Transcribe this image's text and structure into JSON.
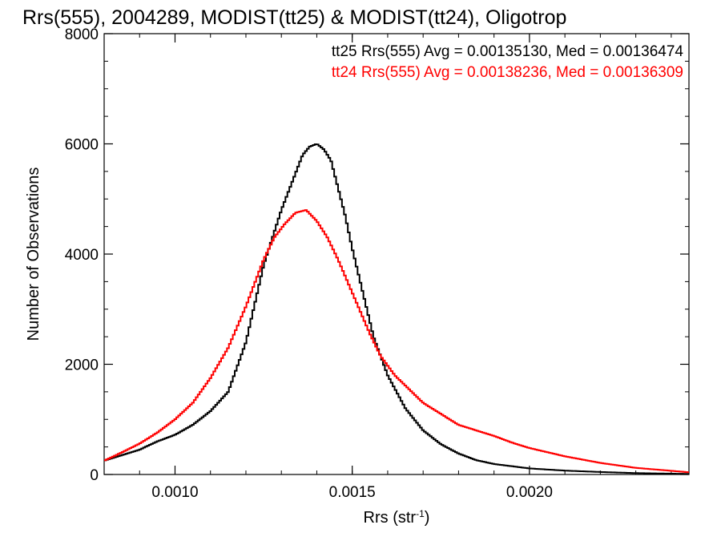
{
  "chart_data": {
    "type": "line",
    "title": "Rrs(555), 2004289, MODIST(tt25) & MODIST(tt24), Oligotrop",
    "xlabel": "Rrs (str",
    "xlabel_sup": "-1",
    "xlabel_close": ")",
    "ylabel": "Number of Observations",
    "xlim": [
      0.0008,
      0.00245
    ],
    "ylim": [
      0,
      8000
    ],
    "x_ticks": [
      0.001,
      0.0015,
      0.002
    ],
    "x_tick_labels": [
      "0.0010",
      "0.0015",
      "0.0020"
    ],
    "y_ticks": [
      0,
      2000,
      4000,
      6000,
      8000
    ],
    "y_tick_labels": [
      "0",
      "2000",
      "4000",
      "6000",
      "8000"
    ],
    "grid": false,
    "legend_position": "top-right",
    "series": [
      {
        "name": "tt25",
        "color": "#000000",
        "legend": "tt25 Rrs(555) Avg = 0.00135130, Med = 0.00136474",
        "x": [
          0.0008,
          0.00085,
          0.0009,
          0.00095,
          0.001,
          0.00105,
          0.0011,
          0.00115,
          0.0012,
          0.00125,
          0.0013,
          0.00133,
          0.00136,
          0.00138,
          0.0014,
          0.00142,
          0.00144,
          0.00146,
          0.00148,
          0.0015,
          0.00153,
          0.00156,
          0.0016,
          0.00165,
          0.0017,
          0.00175,
          0.0018,
          0.00185,
          0.0019,
          0.002,
          0.0021,
          0.0022,
          0.0023,
          0.00245
        ],
        "y": [
          250,
          350,
          450,
          600,
          720,
          900,
          1150,
          1500,
          2400,
          3800,
          4800,
          5300,
          5800,
          5950,
          6000,
          5900,
          5700,
          5200,
          4700,
          4100,
          3300,
          2500,
          1800,
          1200,
          800,
          550,
          380,
          260,
          190,
          110,
          70,
          45,
          25,
          10
        ]
      },
      {
        "name": "tt24",
        "color": "#ff0000",
        "legend": "tt24 Rrs(555) Avg = 0.00138236, Med = 0.00136309",
        "x": [
          0.0008,
          0.00085,
          0.0009,
          0.00095,
          0.001,
          0.00105,
          0.0011,
          0.00115,
          0.0012,
          0.00125,
          0.00128,
          0.00131,
          0.00134,
          0.00137,
          0.0014,
          0.00143,
          0.00146,
          0.00149,
          0.00152,
          0.00155,
          0.00158,
          0.00162,
          0.00166,
          0.0017,
          0.00175,
          0.0018,
          0.00185,
          0.0019,
          0.00195,
          0.002,
          0.0021,
          0.0022,
          0.0023,
          0.00245
        ],
        "y": [
          250,
          400,
          560,
          760,
          1000,
          1300,
          1750,
          2300,
          3050,
          3900,
          4300,
          4550,
          4750,
          4800,
          4600,
          4300,
          3900,
          3450,
          3000,
          2550,
          2150,
          1800,
          1550,
          1300,
          1100,
          900,
          800,
          700,
          580,
          480,
          330,
          210,
          120,
          40
        ]
      }
    ]
  }
}
